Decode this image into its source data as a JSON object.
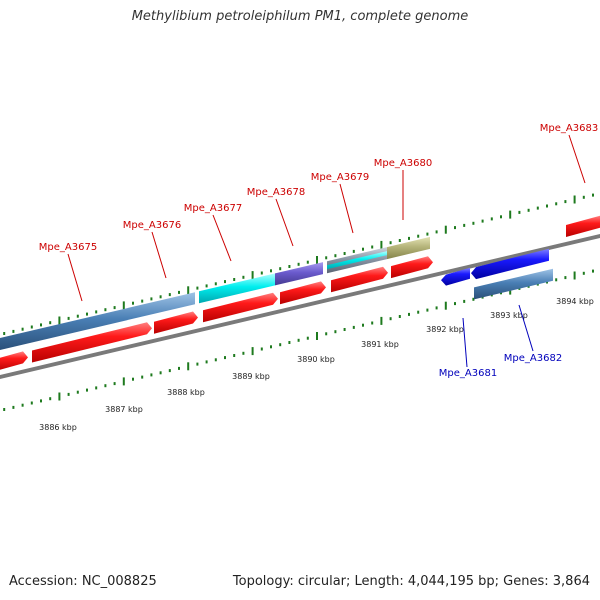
{
  "header": {
    "title": "Methylibium petroleiphilum PM1, complete genome"
  },
  "footer": {
    "accession": "Accession: NC_008825",
    "topology": "Topology: circular; Length: 4,044,195 bp; Genes: 3,864"
  },
  "colors": {
    "forward_gene": "#ee1111",
    "reverse_gene": "#1a1aee",
    "backbone": "#7a7a7a",
    "ticks": "#1e7a1e",
    "steelblue_feature": "#4a7fb5",
    "cyan_feature": "#00e5ee",
    "slateblue_feature": "#6a5acd",
    "gray_feature": "#8a96a6",
    "khaki_feature": "#b5b47a"
  },
  "scale": {
    "unit": "kbp",
    "ticks": [
      {
        "value": 3886,
        "label": "3886 kbp"
      },
      {
        "value": 3887,
        "label": "3887 kbp"
      },
      {
        "value": 3888,
        "label": "3888 kbp"
      },
      {
        "value": 3889,
        "label": "3889 kbp"
      },
      {
        "value": 3890,
        "label": "3890 kbp"
      },
      {
        "value": 3891,
        "label": "3891 kbp"
      },
      {
        "value": 3892,
        "label": "3892 kbp"
      },
      {
        "value": 3893,
        "label": "3893 kbp"
      },
      {
        "value": 3894,
        "label": "3894 kbp"
      }
    ]
  },
  "genes": [
    {
      "name": "Mpe_A3675",
      "strand": "forward"
    },
    {
      "name": "Mpe_A3676",
      "strand": "forward"
    },
    {
      "name": "Mpe_A3677",
      "strand": "forward"
    },
    {
      "name": "Mpe_A3678",
      "strand": "forward"
    },
    {
      "name": "Mpe_A3679",
      "strand": "forward"
    },
    {
      "name": "Mpe_A3680",
      "strand": "forward"
    },
    {
      "name": "Mpe_A3683",
      "strand": "forward"
    },
    {
      "name": "Mpe_A3681",
      "strand": "reverse"
    },
    {
      "name": "Mpe_A3682",
      "strand": "reverse"
    }
  ]
}
